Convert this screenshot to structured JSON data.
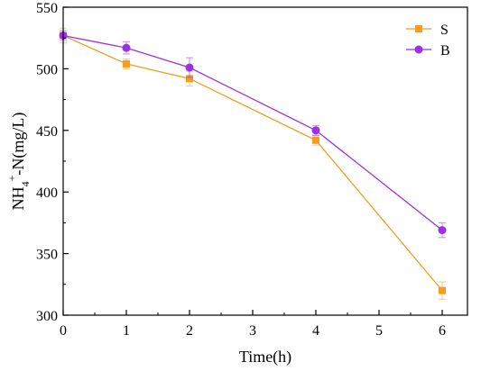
{
  "chart_data": {
    "type": "line",
    "xlabel": "Time(h)",
    "ylabel": {
      "base": "NH",
      "sub": "4",
      "sup": "+",
      "rest": "-N(mg/L)"
    },
    "xlim": [
      0,
      6.4
    ],
    "ylim": [
      300,
      550
    ],
    "xticks": [
      0,
      1,
      2,
      3,
      4,
      5,
      6
    ],
    "yticks": [
      300,
      350,
      400,
      450,
      500,
      550
    ],
    "grid": false,
    "legend_position": "top-right",
    "series": [
      {
        "name": "S",
        "color": "#f39c1f",
        "marker": "square",
        "points": [
          {
            "x": 0,
            "y": 527,
            "err": 6
          },
          {
            "x": 1,
            "y": 504,
            "err": 4
          },
          {
            "x": 2,
            "y": 492,
            "err": 6
          },
          {
            "x": 4,
            "y": 442,
            "err": 4
          },
          {
            "x": 6,
            "y": 320,
            "err": 7
          }
        ]
      },
      {
        "name": "B",
        "color": "#9b30e8",
        "marker": "circle",
        "points": [
          {
            "x": 0,
            "y": 527,
            "err": 4
          },
          {
            "x": 1,
            "y": 517,
            "err": 5
          },
          {
            "x": 2,
            "y": 501,
            "err": 8
          },
          {
            "x": 4,
            "y": 450,
            "err": 4
          },
          {
            "x": 6,
            "y": 369,
            "err": 6
          }
        ]
      }
    ]
  }
}
